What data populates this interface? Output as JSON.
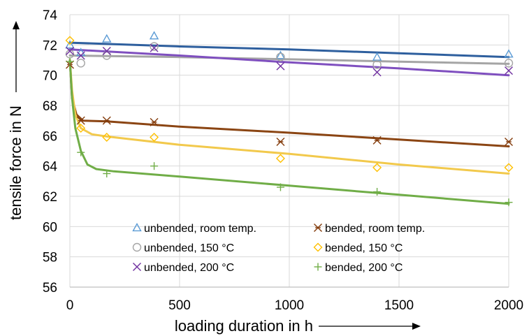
{
  "chart_data": {
    "type": "scatter",
    "xlabel": "loading duration in h",
    "ylabel": "tensile force in N",
    "xlim": [
      0,
      2000
    ],
    "ylim": [
      56,
      74
    ],
    "xticks": [
      0,
      500,
      1000,
      1500,
      2000
    ],
    "yticks": [
      56,
      58,
      60,
      62,
      64,
      66,
      68,
      70,
      72,
      74
    ],
    "grid": true,
    "legend_position": "bottom-center",
    "series": [
      {
        "name": "unbended, room temp.",
        "marker": "triangle-icon",
        "color": "#5b9bd5",
        "line_color": "#2e5f9e",
        "points": [
          [
            0,
            72.0
          ],
          [
            50,
            71.5
          ],
          [
            168,
            72.4
          ],
          [
            384,
            72.6
          ],
          [
            960,
            71.3
          ],
          [
            1400,
            71.2
          ],
          [
            2000,
            71.4
          ]
        ],
        "fit": [
          [
            0,
            72.15
          ],
          [
            500,
            71.9
          ],
          [
            1000,
            71.7
          ],
          [
            1500,
            71.45
          ],
          [
            2000,
            71.2
          ]
        ]
      },
      {
        "name": "unbended, 150 °C",
        "marker": "circle-icon",
        "color": "#a5a5a5",
        "line_color": "#a5a5a5",
        "points": [
          [
            0,
            71.4
          ],
          [
            50,
            70.8
          ],
          [
            168,
            71.3
          ],
          [
            384,
            71.9
          ],
          [
            960,
            71.2
          ],
          [
            1400,
            70.7
          ],
          [
            2000,
            70.8
          ]
        ],
        "fit": [
          [
            0,
            71.3
          ],
          [
            500,
            71.2
          ],
          [
            1000,
            71.05
          ],
          [
            1500,
            70.9
          ],
          [
            2000,
            70.75
          ]
        ]
      },
      {
        "name": "unbended, 200 °C",
        "marker": "x-icon",
        "color": "#7030a0",
        "line_color": "#7f4fbf",
        "points": [
          [
            0,
            71.6
          ],
          [
            50,
            71.3
          ],
          [
            168,
            71.6
          ],
          [
            384,
            71.8
          ],
          [
            960,
            70.6
          ],
          [
            1400,
            70.2
          ],
          [
            2000,
            70.3
          ]
        ],
        "fit": [
          [
            0,
            71.7
          ],
          [
            500,
            71.3
          ],
          [
            1000,
            70.85
          ],
          [
            1500,
            70.45
          ],
          [
            2000,
            70.0
          ]
        ]
      },
      {
        "name": "bended, room temp.",
        "marker": "asterisk-icon",
        "color": "#843c0c",
        "line_color": "#8b4513",
        "points": [
          [
            0,
            70.7
          ],
          [
            50,
            67.0
          ],
          [
            168,
            67.0
          ],
          [
            384,
            66.9
          ],
          [
            960,
            65.6
          ],
          [
            1400,
            65.7
          ],
          [
            2000,
            65.6
          ]
        ],
        "fit": [
          [
            0,
            71.0
          ],
          [
            10,
            68.5
          ],
          [
            30,
            67.4
          ],
          [
            60,
            67.0
          ],
          [
            168,
            66.95
          ],
          [
            500,
            66.6
          ],
          [
            1000,
            66.2
          ],
          [
            1500,
            65.75
          ],
          [
            2000,
            65.3
          ]
        ]
      },
      {
        "name": "bended, 150 °C",
        "marker": "diamond-icon",
        "color": "#ffc000",
        "line_color": "#f2c94c",
        "points": [
          [
            0,
            72.3
          ],
          [
            50,
            66.5
          ],
          [
            168,
            65.9
          ],
          [
            384,
            65.9
          ],
          [
            960,
            64.5
          ],
          [
            1400,
            63.9
          ],
          [
            2000,
            63.9
          ]
        ],
        "fit": [
          [
            0,
            71.0
          ],
          [
            10,
            69.0
          ],
          [
            25,
            67.4
          ],
          [
            50,
            66.5
          ],
          [
            100,
            66.1
          ],
          [
            168,
            65.95
          ],
          [
            500,
            65.4
          ],
          [
            1000,
            64.8
          ],
          [
            1500,
            64.1
          ],
          [
            2000,
            63.5
          ]
        ]
      },
      {
        "name": "bended, 200 °C",
        "marker": "plus-icon",
        "color": "#70ad47",
        "line_color": "#70ad47",
        "points": [
          [
            0,
            70.9
          ],
          [
            50,
            64.9
          ],
          [
            168,
            63.5
          ],
          [
            384,
            64.0
          ],
          [
            960,
            62.6
          ],
          [
            1400,
            62.3
          ],
          [
            2000,
            61.6
          ]
        ],
        "fit": [
          [
            0,
            71.0
          ],
          [
            10,
            68.5
          ],
          [
            25,
            66.5
          ],
          [
            50,
            65.0
          ],
          [
            80,
            64.1
          ],
          [
            120,
            63.8
          ],
          [
            200,
            63.65
          ],
          [
            500,
            63.3
          ],
          [
            1000,
            62.7
          ],
          [
            1500,
            62.1
          ],
          [
            2000,
            61.5
          ]
        ]
      }
    ]
  }
}
